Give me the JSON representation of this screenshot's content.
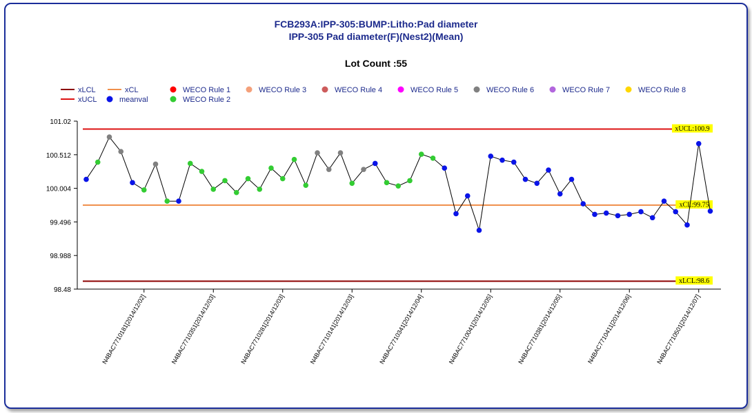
{
  "chart_data": {
    "type": "line",
    "title": "FCB293A:IPP-305:BUMP:Litho:Pad diameter",
    "subtitle": "IPP-305 Pad diameter(F)(Nest2)(Mean)",
    "lot_count_label": "Lot Count :55",
    "legend": [
      {
        "label": "xLCL",
        "kind": "line",
        "color": "#8b0000"
      },
      {
        "label": "xUCL",
        "kind": "line",
        "color": "#dd1111"
      },
      {
        "label": "xCL",
        "kind": "line",
        "color": "#f0904c"
      },
      {
        "label": "meanval",
        "kind": "dot",
        "color": "#0a14e8"
      },
      {
        "label": "WECO Rule 1",
        "kind": "dot",
        "color": "#ff0000"
      },
      {
        "label": "WECO Rule 2",
        "kind": "dot",
        "color": "#33cc33"
      },
      {
        "label": "WECO Rule 3",
        "kind": "dot",
        "color": "#f4a07a"
      },
      {
        "label": "WECO Rule 4",
        "kind": "dot",
        "color": "#cd5c5c"
      },
      {
        "label": "WECO Rule 5",
        "kind": "dot",
        "color": "#ff00ff"
      },
      {
        "label": "WECO Rule 6",
        "kind": "dot",
        "color": "#808080"
      },
      {
        "label": "WECO Rule 7",
        "kind": "dot",
        "color": "#b266dd"
      },
      {
        "label": "WECO Rule 8",
        "kind": "dot",
        "color": "#ffd700"
      }
    ],
    "yticks": [
      "98.48",
      "98.988",
      "99.496",
      "100.004",
      "100.512",
      "101.02"
    ],
    "ylim": [
      98.48,
      101.02
    ],
    "limits": {
      "ucl": {
        "value": 100.9,
        "label": "xUCL:100.9",
        "color": "#dd1111"
      },
      "cl": {
        "value": 99.75,
        "label": "xCL:99.75",
        "color": "#f0904c"
      },
      "lcl": {
        "value": 98.6,
        "label": "xLCL:98.6",
        "color": "#8b0000"
      }
    },
    "xtick_labels": [
      {
        "index": 5,
        "label": "N4BAC7710181[2014/12/02]"
      },
      {
        "index": 11,
        "label": "N4BAC7710351[2014/12/03]"
      },
      {
        "index": 17,
        "label": "N4BAC7710281[2014/12/03]"
      },
      {
        "index": 23,
        "label": "N4BAC7710141[2014/12/03]"
      },
      {
        "index": 29,
        "label": "N4BAC7710341[2014/12/04]"
      },
      {
        "index": 35,
        "label": "N4BAC7710041[2014/12/05]"
      },
      {
        "index": 41,
        "label": "N4BAC7710381[2014/12/05]"
      },
      {
        "index": 47,
        "label": "N4BAC7710411[2014/12/06]"
      },
      {
        "index": 53,
        "label": "N4BAC7710501[2014/12/07]"
      }
    ],
    "points": [
      {
        "y": 100.14,
        "rule": "meanval"
      },
      {
        "y": 100.4,
        "rule": "WECO Rule 2"
      },
      {
        "y": 100.78,
        "rule": "WECO Rule 6"
      },
      {
        "y": 100.56,
        "rule": "WECO Rule 6"
      },
      {
        "y": 100.09,
        "rule": "meanval"
      },
      {
        "y": 99.98,
        "rule": "WECO Rule 2"
      },
      {
        "y": 100.37,
        "rule": "WECO Rule 6"
      },
      {
        "y": 99.81,
        "rule": "WECO Rule 2"
      },
      {
        "y": 99.81,
        "rule": "meanval"
      },
      {
        "y": 100.38,
        "rule": "WECO Rule 2"
      },
      {
        "y": 100.26,
        "rule": "WECO Rule 2"
      },
      {
        "y": 99.99,
        "rule": "WECO Rule 2"
      },
      {
        "y": 100.12,
        "rule": "WECO Rule 2"
      },
      {
        "y": 99.94,
        "rule": "WECO Rule 2"
      },
      {
        "y": 100.15,
        "rule": "WECO Rule 2"
      },
      {
        "y": 99.99,
        "rule": "WECO Rule 2"
      },
      {
        "y": 100.31,
        "rule": "WECO Rule 2"
      },
      {
        "y": 100.15,
        "rule": "WECO Rule 2"
      },
      {
        "y": 100.44,
        "rule": "WECO Rule 2"
      },
      {
        "y": 100.05,
        "rule": "WECO Rule 2"
      },
      {
        "y": 100.54,
        "rule": "WECO Rule 6"
      },
      {
        "y": 100.29,
        "rule": "WECO Rule 6"
      },
      {
        "y": 100.54,
        "rule": "WECO Rule 6"
      },
      {
        "y": 100.08,
        "rule": "WECO Rule 2"
      },
      {
        "y": 100.29,
        "rule": "WECO Rule 6"
      },
      {
        "y": 100.38,
        "rule": "meanval"
      },
      {
        "y": 100.09,
        "rule": "WECO Rule 2"
      },
      {
        "y": 100.04,
        "rule": "WECO Rule 2"
      },
      {
        "y": 100.12,
        "rule": "WECO Rule 2"
      },
      {
        "y": 100.52,
        "rule": "WECO Rule 2"
      },
      {
        "y": 100.46,
        "rule": "WECO Rule 2"
      },
      {
        "y": 100.31,
        "rule": "meanval"
      },
      {
        "y": 99.62,
        "rule": "meanval"
      },
      {
        "y": 99.89,
        "rule": "meanval"
      },
      {
        "y": 99.37,
        "rule": "meanval"
      },
      {
        "y": 100.49,
        "rule": "meanval"
      },
      {
        "y": 100.43,
        "rule": "meanval"
      },
      {
        "y": 100.4,
        "rule": "meanval"
      },
      {
        "y": 100.14,
        "rule": "meanval"
      },
      {
        "y": 100.08,
        "rule": "meanval"
      },
      {
        "y": 100.28,
        "rule": "meanval"
      },
      {
        "y": 99.92,
        "rule": "meanval"
      },
      {
        "y": 100.14,
        "rule": "meanval"
      },
      {
        "y": 99.77,
        "rule": "meanval"
      },
      {
        "y": 99.61,
        "rule": "meanval"
      },
      {
        "y": 99.63,
        "rule": "meanval"
      },
      {
        "y": 99.59,
        "rule": "meanval"
      },
      {
        "y": 99.61,
        "rule": "meanval"
      },
      {
        "y": 99.65,
        "rule": "meanval"
      },
      {
        "y": 99.56,
        "rule": "meanval"
      },
      {
        "y": 99.81,
        "rule": "meanval"
      },
      {
        "y": 99.65,
        "rule": "meanval"
      },
      {
        "y": 99.45,
        "rule": "meanval"
      },
      {
        "y": 100.68,
        "rule": "meanval"
      },
      {
        "y": 99.66,
        "rule": "meanval"
      }
    ]
  }
}
